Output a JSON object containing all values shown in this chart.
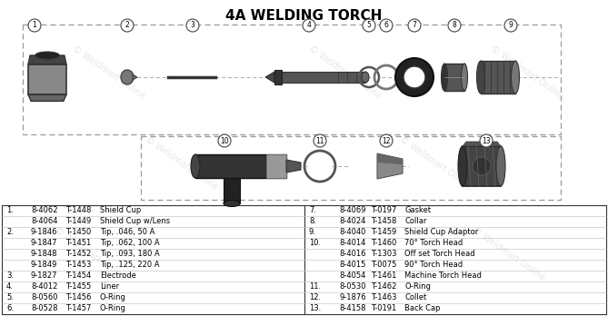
{
  "title": "4A WELDING TORCH",
  "title_fontsize": 11,
  "table_rows_left": [
    [
      "1.",
      "8-4062",
      "T-1448",
      "Shield Cup"
    ],
    [
      "",
      "8-4064",
      "T-1449",
      "Shield Cup w/Lens"
    ],
    [
      "2.",
      "9-1846",
      "T-1450",
      "Tip, .046, 50 A"
    ],
    [
      "",
      "9-1847",
      "T-1451",
      "Tip, .062, 100 A"
    ],
    [
      "",
      "9-1848",
      "T-1452",
      "Tip, .093, 180 A"
    ],
    [
      "",
      "9-1849",
      "T-1453",
      "Tip, .125, 220 A"
    ],
    [
      "3.",
      "9-1827",
      "T-1454",
      "Electrode"
    ],
    [
      "4.",
      "8-4012",
      "T-1455",
      "Liner"
    ],
    [
      "5.",
      "8-0560",
      "T-1456",
      "O-Ring"
    ],
    [
      "6.",
      "8-0528",
      "T-1457",
      "O-Ring"
    ]
  ],
  "table_rows_right": [
    [
      "7.",
      "8-4069",
      "T-0197",
      "Gasket"
    ],
    [
      "8.",
      "8-4024",
      "T-1458",
      "Collar"
    ],
    [
      "9.",
      "8-4040",
      "T-1459",
      "Shield Cup Adaptor"
    ],
    [
      "10.",
      "8-4014",
      "T-1460",
      "70° Torch Head"
    ],
    [
      "",
      "8-4016",
      "T-1303",
      "Off set Torch Head"
    ],
    [
      "",
      "8-4015",
      "T-0075",
      "90° Torch Head"
    ],
    [
      "",
      "8-4054",
      "T-1461",
      "Machine Torch Head"
    ],
    [
      "11.",
      "8-0530",
      "T-1462",
      "O-Ring"
    ],
    [
      "12.",
      "9-1876",
      "T-1463",
      "Collet"
    ],
    [
      "13.",
      "8-4158",
      "T-0191",
      "Back Cap"
    ]
  ],
  "bg_color": "#ffffff",
  "text_color": "#000000"
}
